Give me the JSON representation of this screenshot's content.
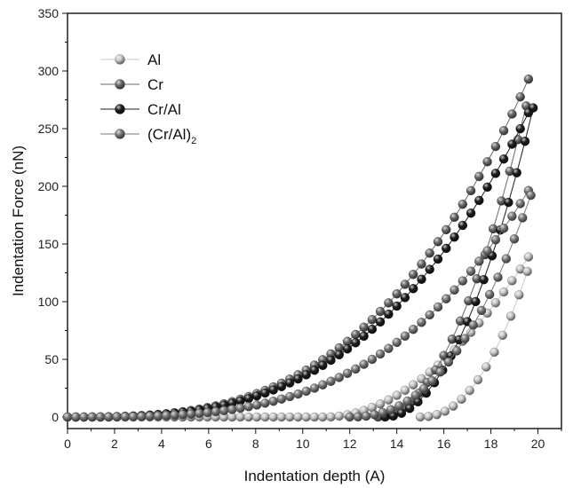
{
  "chart_data": {
    "type": "scatter",
    "title": "",
    "xlabel": "Indentation depth (A)",
    "ylabel": "Indentation Force (nN)",
    "xlim": [
      0,
      21
    ],
    "ylim": [
      -10,
      350
    ],
    "x_ticks": [
      0,
      2,
      4,
      6,
      8,
      10,
      12,
      14,
      16,
      18,
      20
    ],
    "y_ticks": [
      0,
      50,
      100,
      150,
      200,
      250,
      300,
      350
    ],
    "grid": false,
    "legend_position": "top-left",
    "series": [
      {
        "name": "Al",
        "name_main": "Al",
        "name_sub": "",
        "color": "#c8c8c8",
        "loading": {
          "start": 11,
          "peak_depth": 19.8,
          "peak_force": 145,
          "exponent": 1.9
        },
        "unloading": {
          "start": 15.0,
          "peak_depth": 19.8,
          "peak_force": 142,
          "exponent": 2.2
        }
      },
      {
        "name": "Cr",
        "name_main": "Cr",
        "name_sub": "",
        "color": "#6a6a6a",
        "loading": {
          "start": 0,
          "peak_depth": 19.8,
          "peak_force": 302,
          "exponent": 3.0
        },
        "unloading": {
          "start": 13.2,
          "peak_depth": 19.8,
          "peak_force": 296,
          "exponent": 2.0
        }
      },
      {
        "name": "Cr/Al",
        "name_main": "Cr/Al",
        "name_sub": "",
        "color": "#1e1e1e",
        "loading": {
          "start": 0,
          "peak_depth": 19.8,
          "peak_force": 272,
          "exponent": 3.0
        },
        "unloading": {
          "start": 13.5,
          "peak_depth": 19.8,
          "peak_force": 268,
          "exponent": 2.0
        }
      },
      {
        "name": "(Cr/Al)2",
        "name_main": "(Cr/Al)",
        "name_sub": "2",
        "color": "#7a7a7a",
        "loading": {
          "start": 0,
          "peak_depth": 19.8,
          "peak_force": 203,
          "exponent": 3.3
        },
        "unloading": {
          "start": 12.0,
          "peak_depth": 19.8,
          "peak_force": 198,
          "exponent": 2.3
        }
      }
    ]
  }
}
